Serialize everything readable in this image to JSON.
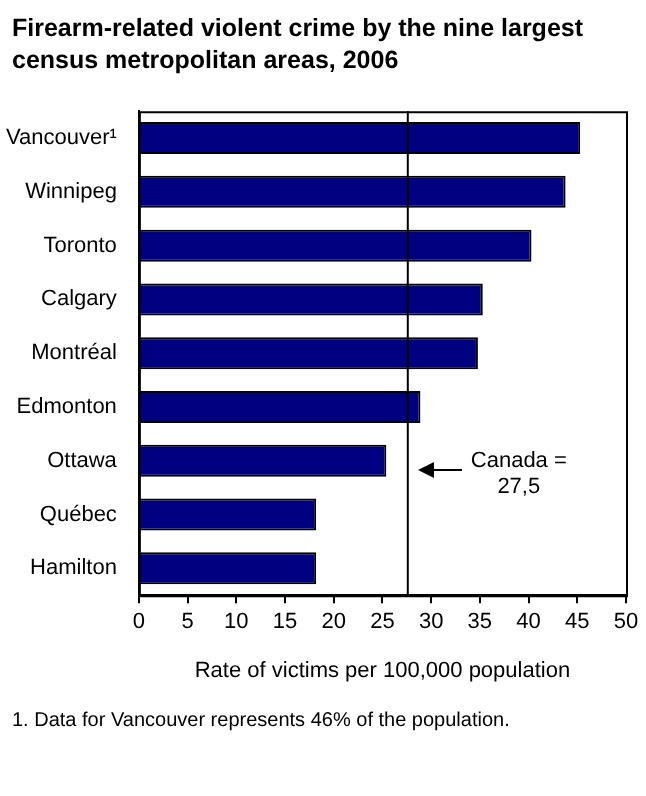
{
  "chart_data": {
    "type": "bar",
    "orientation": "horizontal",
    "title": "Firearm-related violent crime by the nine largest census metropolitan areas, 2006",
    "categories": [
      "Vancouver¹",
      "Winnipeg",
      "Toronto",
      "Calgary",
      "Montréal",
      "Edmonton",
      "Ottawa",
      "Québec",
      "Hamilton"
    ],
    "values": [
      45.3,
      43.8,
      40.3,
      35.3,
      34.8,
      28.9,
      25.4,
      18.2,
      18.2
    ],
    "color": "#000080",
    "xlabel": "Rate of victims per 100,000 population",
    "xlim": [
      0,
      50
    ],
    "xticks": [
      0,
      5,
      10,
      15,
      20,
      25,
      30,
      35,
      40,
      45,
      50
    ],
    "ref_lines": [
      {
        "axis": "x",
        "value": 27.5,
        "label": "Canada =\n27,5",
        "color": "#000000"
      }
    ],
    "annotations": [
      "1. Data for Vancouver represents 46% of the population."
    ],
    "grid": false,
    "legend": false
  }
}
